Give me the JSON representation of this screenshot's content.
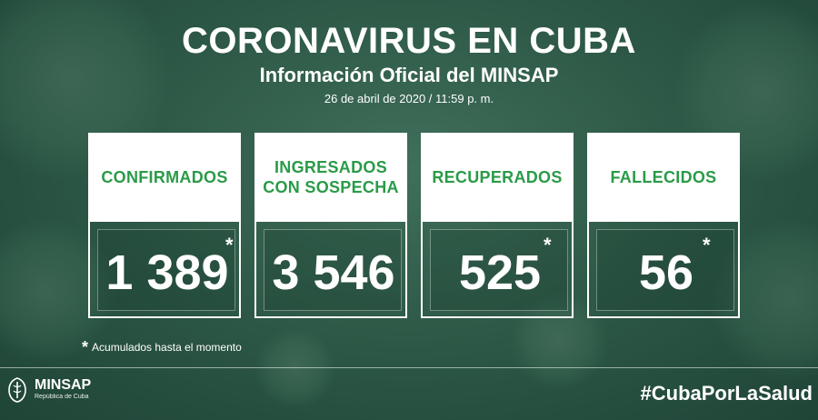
{
  "header": {
    "title": "CORONAVIRUS EN CUBA",
    "subtitle": "Información Oficial del MINSAP",
    "date": "26 de abril de 2020 / 11:59 p. m."
  },
  "stats": [
    {
      "label": "CONFIRMADOS",
      "value": "1 389",
      "asterisk": "*"
    },
    {
      "label": "INGRESADOS\nCON SOSPECHA",
      "value": "3 546",
      "asterisk": ""
    },
    {
      "label": "RECUPERADOS",
      "value": "525",
      "asterisk": "*"
    },
    {
      "label": "FALLECIDOS",
      "value": "56",
      "asterisk": "*"
    }
  ],
  "footnote": {
    "symbol": "*",
    "text": "Acumulados hasta el momento"
  },
  "footer": {
    "logo_name": "MINSAP",
    "logo_subtitle": "República de Cuba",
    "hashtag": "#CubaPorLaSalud"
  },
  "colors": {
    "accent_green": "#2a9b48",
    "background": "#2b5544"
  }
}
